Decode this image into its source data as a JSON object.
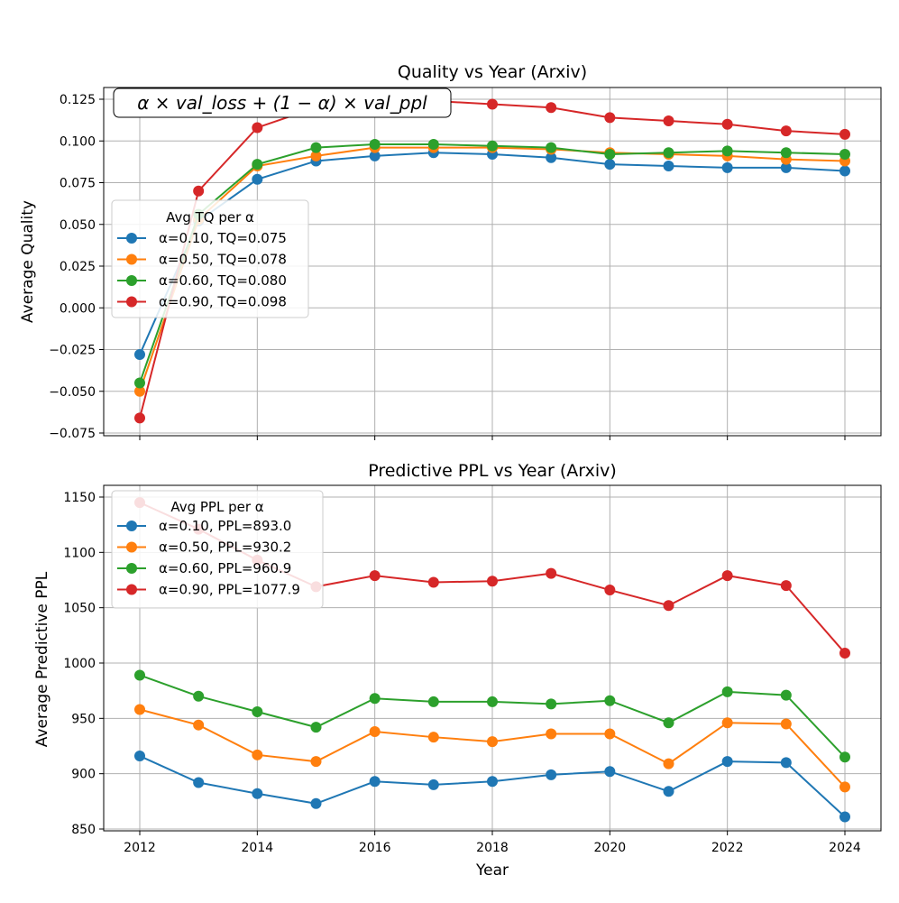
{
  "chart_data": [
    {
      "type": "line",
      "title": "Quality vs Year (Arxiv)",
      "xlabel": "",
      "ylabel": "Average Quality",
      "annotation": "α × val_loss + (1 − α) × val_ppl",
      "legend_title": "Avg TQ per α",
      "legend_position": "center-left",
      "grid": true,
      "ylim": [
        -0.075,
        0.13
      ],
      "yticks": [
        -0.075,
        -0.05,
        -0.025,
        0.0,
        0.025,
        0.05,
        0.075,
        0.1,
        0.125
      ],
      "ytick_labels": [
        "−0.075",
        "−0.050",
        "−0.025",
        "0.000",
        "0.025",
        "0.050",
        "0.075",
        "0.100",
        "0.125"
      ],
      "x": [
        2012,
        2013,
        2014,
        2015,
        2016,
        2017,
        2018,
        2019,
        2020,
        2021,
        2022,
        2023,
        2024
      ],
      "series": [
        {
          "name": "α=0.10, TQ=0.075",
          "color": "#1f77b4",
          "values": [
            -0.028,
            0.052,
            0.077,
            0.088,
            0.091,
            0.093,
            0.092,
            0.09,
            0.086,
            0.085,
            0.084,
            0.084,
            0.082
          ]
        },
        {
          "name": "α=0.50, TQ=0.078",
          "color": "#ff7f0e",
          "values": [
            -0.05,
            0.053,
            0.085,
            0.091,
            0.096,
            0.096,
            0.096,
            0.095,
            0.093,
            0.092,
            0.091,
            0.089,
            0.088
          ]
        },
        {
          "name": "α=0.60, TQ=0.080",
          "color": "#2ca02c",
          "values": [
            -0.045,
            0.056,
            0.086,
            0.096,
            0.098,
            0.098,
            0.097,
            0.096,
            0.092,
            0.093,
            0.094,
            0.093,
            0.092
          ]
        },
        {
          "name": "α=0.90, TQ=0.098",
          "color": "#d62728",
          "values": [
            -0.066,
            0.07,
            0.108,
            0.12,
            0.124,
            0.124,
            0.122,
            0.12,
            0.114,
            0.112,
            0.11,
            0.106,
            0.104
          ]
        }
      ]
    },
    {
      "type": "line",
      "title": "Predictive PPL vs Year (Arxiv)",
      "xlabel": "Year",
      "ylabel": "Average Predictive PPL",
      "legend_title": "Avg PPL per α",
      "legend_position": "upper-left",
      "grid": true,
      "ylim": [
        845,
        1160
      ],
      "yticks": [
        850,
        900,
        950,
        1000,
        1050,
        1100,
        1150
      ],
      "ytick_labels": [
        "850",
        "900",
        "950",
        "1000",
        "1050",
        "1100",
        "1150"
      ],
      "xticks": [
        2012,
        2014,
        2016,
        2018,
        2020,
        2022,
        2024
      ],
      "x": [
        2012,
        2013,
        2014,
        2015,
        2016,
        2017,
        2018,
        2019,
        2020,
        2021,
        2022,
        2023,
        2024
      ],
      "series": [
        {
          "name": "α=0.10, PPL=893.0",
          "color": "#1f77b4",
          "values": [
            916,
            892,
            882,
            873,
            893,
            890,
            893,
            899,
            902,
            884,
            911,
            910,
            861
          ]
        },
        {
          "name": "α=0.50, PPL=930.2",
          "color": "#ff7f0e",
          "values": [
            958,
            944,
            917,
            911,
            938,
            933,
            929,
            936,
            936,
            909,
            946,
            945,
            888
          ]
        },
        {
          "name": "α=0.60, PPL=960.9",
          "color": "#2ca02c",
          "values": [
            989,
            970,
            956,
            942,
            968,
            965,
            965,
            963,
            966,
            946,
            974,
            971,
            915
          ]
        },
        {
          "name": "α=0.90, PPL=1077.9",
          "color": "#d62728",
          "values": [
            1145,
            1121,
            1093,
            1069,
            1079,
            1073,
            1074,
            1081,
            1066,
            1052,
            1079,
            1070,
            1009
          ]
        }
      ]
    }
  ]
}
